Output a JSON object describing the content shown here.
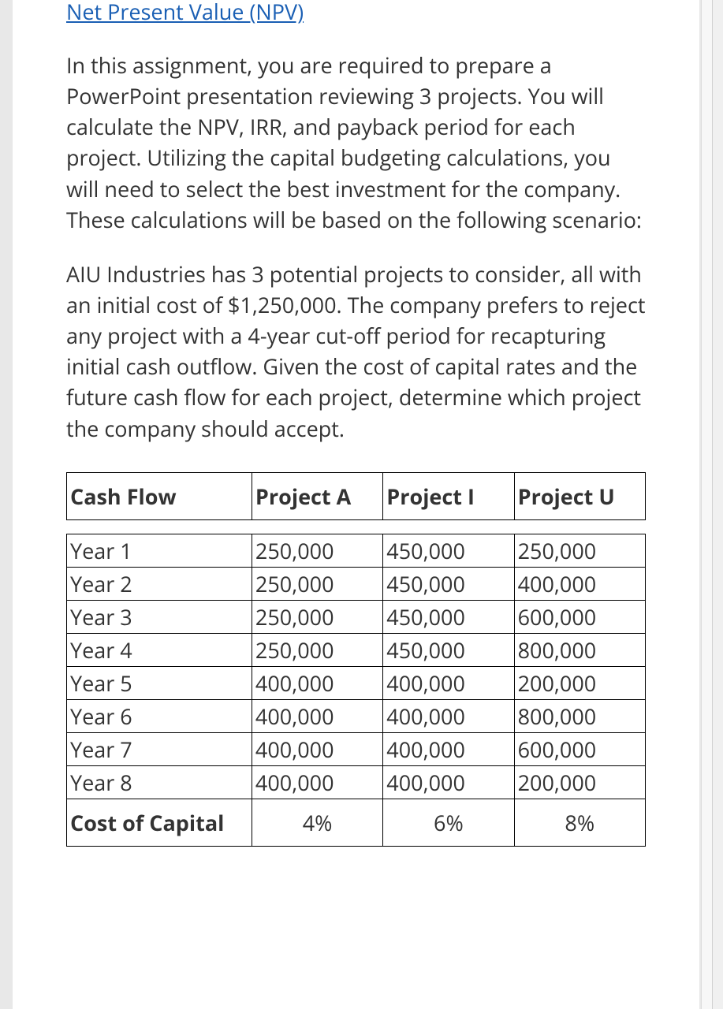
{
  "heading": "Net Present Value (NPV)",
  "heading_color": "#1a5fb4",
  "body_color": "#333333",
  "paragraph1": "In this assignment, you are required to prepare a PowerPoint presentation reviewing 3 projects. You will calculate the NPV, IRR, and payback period for each project. Utilizing the capital budgeting calculations, you will need to select the best investment for the company. These calculations will be based on the following scenario:",
  "paragraph2": "AIU Industries has 3 potential projects to consider, all with an initial cost of $1,250,000. The company prefers to reject any project with a 4-year cut-off period for recapturing initial cash outflow. Given the cost of capital rates and the future cash flow for each project, determine which project the company should accept.",
  "table": {
    "type": "table",
    "border_color": "#000000",
    "background_color": "#ffffff",
    "font_size": 27,
    "header_font_weight": 700,
    "columns": [
      "Cash Flow",
      "Project A",
      "Project I",
      "Project U"
    ],
    "column_widths_pct": [
      32,
      22.66,
      22.66,
      22.66
    ],
    "rows": [
      [
        "Year 1",
        "250,000",
        "450,000",
        "250,000"
      ],
      [
        "Year 2",
        "250,000",
        "450,000",
        "400,000"
      ],
      [
        "Year 3",
        "250,000",
        "450,000",
        "600,000"
      ],
      [
        "Year 4",
        "250,000",
        "450,000",
        "800,000"
      ],
      [
        "Year 5",
        "400,000",
        "400,000",
        "200,000"
      ],
      [
        "Year 6",
        "400,000",
        "400,000",
        "800,000"
      ],
      [
        "Year 7",
        "400,000",
        "400,000",
        "600,000"
      ],
      [
        "Year 8",
        "400,000",
        "400,000",
        "200,000"
      ]
    ],
    "footer_label": "Cost of Capital",
    "footer_values": [
      "4%",
      "6%",
      "8%"
    ],
    "footer_align": "center"
  }
}
